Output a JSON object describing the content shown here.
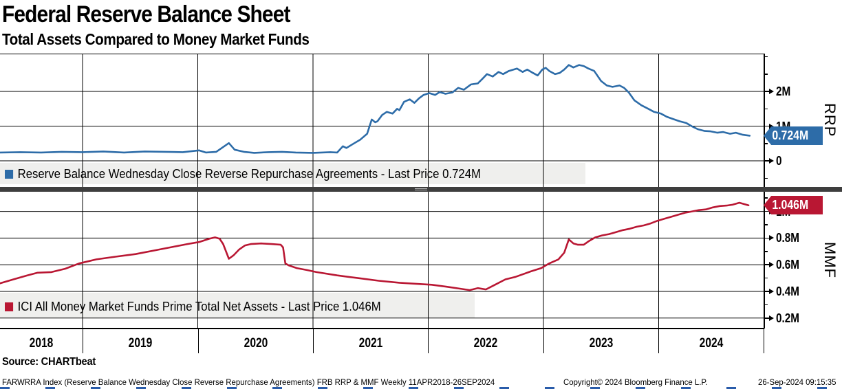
{
  "header": {
    "title": "Federal Reserve Balance Sheet",
    "subtitle": "Total Assets Compared to Money Market Funds"
  },
  "colors": {
    "rrp_line": "#2d6ca8",
    "mmf_line": "#b91733",
    "rrp_badge": "#2d6ca8",
    "mmf_badge": "#b91733",
    "grid": "#000000",
    "separator": "#3e3e3e",
    "legend_bg": "#efefed"
  },
  "top_panel": {
    "legend": "Reserve Balance Wednesday Close Reverse Repurchase Agreements - Last Price 0.724M",
    "axis_label": "RRP",
    "badge": "0.724M",
    "major_ticks": [
      {
        "v": 2,
        "label": "2M"
      },
      {
        "v": 1,
        "label": "1M"
      },
      {
        "v": 0,
        "label": "0"
      }
    ],
    "minor_ticks": [
      3.0,
      2.5,
      1.5,
      0.5,
      -0.5
    ]
  },
  "bottom_panel": {
    "legend": "ICI All Money Market Funds Prime Total Net Assets - Last Price 1.046M",
    "axis_label": "MMF",
    "badge": "1.046M",
    "major_ticks": [
      {
        "v": 1.0,
        "label": "1M"
      },
      {
        "v": 0.8,
        "label": "0.8M"
      },
      {
        "v": 0.6,
        "label": "0.6M"
      },
      {
        "v": 0.4,
        "label": "0.4M"
      },
      {
        "v": 0.2,
        "label": "0.2M"
      }
    ],
    "minor_ticks": [
      1.1,
      0.9,
      0.7,
      0.5,
      0.3
    ]
  },
  "x_axis": {
    "years": [
      "2018",
      "2019",
      "2020",
      "2021",
      "2022",
      "2023",
      "2024"
    ]
  },
  "footer": {
    "source": "Source: CHARTbeat",
    "meta_left": "FARWRRA Index (Reserve Balance Wednesday Close Reverse Repurchase Agreements) FRB RRP & MMF  Weekly 11APR2018-26SEP2024",
    "meta_copyright": "Copyright© 2024 Bloomberg Finance L.P.",
    "meta_datetime": "26-Sep-2024 09:15:35"
  },
  "chart_data": [
    {
      "type": "line",
      "name": "Reserve Balance Wednesday Close Reverse Repurchase Agreements",
      "panel": "top",
      "units": "millions (M)",
      "last_price": 0.724,
      "x_range_years": [
        2018.28,
        2024.79
      ],
      "ylim": [
        -0.6,
        3.1
      ],
      "yticks": [
        0,
        1,
        2
      ],
      "x": [
        2018.28,
        2018.46,
        2018.64,
        2018.82,
        2019.0,
        2019.18,
        2019.36,
        2019.54,
        2019.72,
        2019.87,
        2020.01,
        2020.07,
        2020.16,
        2020.27,
        2020.32,
        2020.4,
        2020.49,
        2020.61,
        2020.73,
        2020.85,
        2021.0,
        2021.15,
        2021.21,
        2021.26,
        2021.29,
        2021.36,
        2021.41,
        2021.47,
        2021.51,
        2021.54,
        2021.56,
        2021.6,
        2021.64,
        2021.69,
        2021.73,
        2021.75,
        2021.79,
        2021.84,
        2021.88,
        2021.92,
        2021.96,
        2022.01,
        2022.06,
        2022.1,
        2022.15,
        2022.21,
        2022.26,
        2022.31,
        2022.37,
        2022.43,
        2022.47,
        2022.51,
        2022.56,
        2022.61,
        2022.65,
        2022.7,
        2022.77,
        2022.82,
        2022.86,
        2022.91,
        2022.95,
        2022.99,
        2023.02,
        2023.05,
        2023.1,
        2023.14,
        2023.18,
        2023.22,
        2023.26,
        2023.31,
        2023.35,
        2023.39,
        2023.44,
        2023.5,
        2023.55,
        2023.6,
        2023.66,
        2023.7,
        2023.74,
        2023.79,
        2023.85,
        2023.91,
        2023.96,
        2024.02,
        2024.07,
        2024.12,
        2024.18,
        2024.24,
        2024.29,
        2024.34,
        2024.4,
        2024.45,
        2024.51,
        2024.56,
        2024.62,
        2024.67,
        2024.73,
        2024.79
      ],
      "values": [
        0.24,
        0.25,
        0.24,
        0.26,
        0.25,
        0.27,
        0.24,
        0.27,
        0.26,
        0.25,
        0.3,
        0.24,
        0.26,
        0.51,
        0.32,
        0.26,
        0.23,
        0.25,
        0.26,
        0.24,
        0.23,
        0.25,
        0.24,
        0.42,
        0.37,
        0.51,
        0.61,
        0.78,
        1.19,
        1.11,
        1.14,
        1.32,
        1.41,
        1.36,
        1.5,
        1.46,
        1.7,
        1.77,
        1.67,
        1.8,
        1.9,
        1.95,
        1.9,
        1.98,
        1.93,
        1.97,
        2.1,
        2.05,
        2.2,
        2.23,
        2.36,
        2.5,
        2.43,
        2.56,
        2.5,
        2.59,
        2.66,
        2.56,
        2.63,
        2.53,
        2.46,
        2.63,
        2.68,
        2.59,
        2.5,
        2.53,
        2.63,
        2.76,
        2.69,
        2.76,
        2.73,
        2.66,
        2.59,
        2.3,
        2.17,
        2.13,
        2.17,
        2.1,
        1.97,
        1.74,
        1.6,
        1.5,
        1.41,
        1.36,
        1.27,
        1.21,
        1.14,
        1.09,
        0.99,
        0.91,
        0.86,
        0.85,
        0.81,
        0.83,
        0.78,
        0.81,
        0.75,
        0.724
      ]
    },
    {
      "type": "line",
      "name": "ICI All Money Market Funds Prime Total Net Assets",
      "panel": "bottom",
      "units": "millions (M)",
      "last_price": 1.046,
      "x_range_years": [
        2018.28,
        2024.78
      ],
      "ylim": [
        0.13,
        1.15
      ],
      "yticks": [
        0.2,
        0.4,
        0.6,
        0.8,
        1.0
      ],
      "x": [
        2018.28,
        2018.4,
        2018.52,
        2018.61,
        2018.73,
        2018.85,
        2018.97,
        2019.12,
        2019.28,
        2019.46,
        2019.64,
        2019.79,
        2019.91,
        2020.01,
        2020.1,
        2020.15,
        2020.19,
        2020.22,
        2020.27,
        2020.31,
        2020.36,
        2020.41,
        2020.46,
        2020.55,
        2020.64,
        2020.72,
        2020.74,
        2020.76,
        2020.79,
        2020.86,
        2020.95,
        2021.03,
        2021.21,
        2021.39,
        2021.57,
        2021.75,
        2021.93,
        2022.03,
        2022.16,
        2022.28,
        2022.36,
        2022.43,
        2022.5,
        2022.58,
        2022.67,
        2022.76,
        2022.89,
        2022.98,
        2023.05,
        2023.13,
        2023.18,
        2023.22,
        2023.26,
        2023.3,
        2023.35,
        2023.39,
        2023.45,
        2023.51,
        2023.57,
        2023.63,
        2023.69,
        2023.75,
        2023.81,
        2023.87,
        2023.93,
        2023.99,
        2024.05,
        2024.11,
        2024.17,
        2024.23,
        2024.29,
        2024.35,
        2024.41,
        2024.47,
        2024.53,
        2024.59,
        2024.64,
        2024.7,
        2024.74,
        2024.78
      ],
      "values": [
        0.46,
        0.49,
        0.52,
        0.54,
        0.545,
        0.57,
        0.61,
        0.64,
        0.66,
        0.68,
        0.71,
        0.735,
        0.755,
        0.77,
        0.795,
        0.805,
        0.795,
        0.755,
        0.645,
        0.67,
        0.715,
        0.745,
        0.755,
        0.76,
        0.755,
        0.75,
        0.73,
        0.61,
        0.595,
        0.575,
        0.56,
        0.545,
        0.52,
        0.5,
        0.48,
        0.465,
        0.455,
        0.45,
        0.435,
        0.42,
        0.41,
        0.425,
        0.415,
        0.45,
        0.49,
        0.51,
        0.55,
        0.575,
        0.61,
        0.64,
        0.69,
        0.79,
        0.76,
        0.75,
        0.75,
        0.775,
        0.805,
        0.82,
        0.83,
        0.845,
        0.86,
        0.87,
        0.885,
        0.895,
        0.91,
        0.93,
        0.945,
        0.96,
        0.975,
        0.99,
        1.0,
        1.01,
        1.015,
        1.03,
        1.04,
        1.044,
        1.05,
        1.065,
        1.055,
        1.046
      ]
    }
  ]
}
